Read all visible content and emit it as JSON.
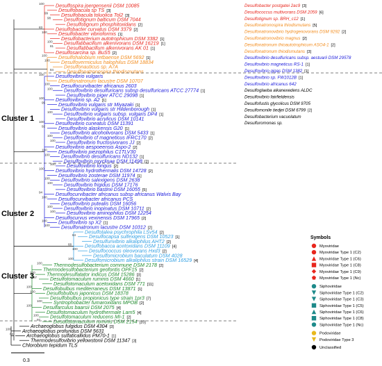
{
  "colors": {
    "red": "#e8261d",
    "orange": "#f28b1c",
    "blue": "#1a1adc",
    "lightblue": "#2e9ee3",
    "green": "#1d8a2c",
    "black": "#000000"
  },
  "clusters": [
    {
      "name": "Cluster 1"
    },
    {
      "name": "Cluster 2"
    },
    {
      "name": "Cluster 3"
    }
  ],
  "tree": {
    "taxa": [
      {
        "name": "Desulfospira joergensenii DSM 10085",
        "color": "red"
      },
      {
        "name": "Desulfobacula sp TS",
        "tag": "[3]",
        "color": "red"
      },
      {
        "name": "Desulfobacula toluolica Tol2",
        "tag": "[3]",
        "color": "red"
      },
      {
        "name": "Desulfotignum balticum DSM 7044",
        "color": "red"
      },
      {
        "name": "Desulfotignum phosphitoxidans",
        "tag": "[2]",
        "color": "red"
      },
      {
        "name": "Desulfobacter curvatus DSM 3379",
        "tag": "[2]",
        "color": "red"
      },
      {
        "name": "Desulfobacter vibrioformis",
        "tag": "[1]",
        "color": "red"
      },
      {
        "name": "Desulfobacterium autotrophicum DSM 3382",
        "tag": "[1]",
        "color": "red"
      },
      {
        "name": "Desulfatibacillum alkenivorans DSM 16219",
        "tag": "[1]",
        "color": "red"
      },
      {
        "name": "Desulfatibacillum alkenivorans AK 01",
        "tag": "[1]",
        "color": "red"
      },
      {
        "name": "Desulfosarcina sp. BuS5",
        "tag": "[2]",
        "color": "red"
      },
      {
        "name": "Desulfohalobium retbaense DSM 5692",
        "tag": "[1]",
        "color": "orange"
      },
      {
        "name": "Desulfovermiculus halophilus DSM 18834",
        "color": "orange"
      },
      {
        "name": "Desulfonauticus sp. A7A",
        "color": "orange"
      },
      {
        "name": "Desulfonatronospira thiodismutans",
        "color": "orange"
      },
      {
        "name": "Desulfovibrio vulgaris",
        "color": "blue"
      },
      {
        "name": "Desulfonatronum lacustre DSM 10707",
        "color": "orange"
      },
      {
        "name": "Desulfocurvibacter africanus 2603",
        "color": "blue"
      },
      {
        "name": "Desulfovibrio desulfuricans subsp desulfuricans ATCC 27774",
        "tag": "[1]",
        "color": "blue"
      },
      {
        "name": "Desulfovibrio piger ATCC 29098",
        "tag": "[1]",
        "color": "blue"
      },
      {
        "name": "Desulfovibrio sp. A2",
        "tag": "[1]",
        "color": "blue"
      },
      {
        "name": "Desulfovibrio vulgaris str Miyazaki",
        "tag": "[1]",
        "color": "blue"
      },
      {
        "name": "Desulfovibrio vulgaris str Hildenborough",
        "tag": "[1]",
        "color": "blue"
      },
      {
        "name": "Desulfovibrio vulgaris subsp. vulgaris DP4",
        "tag": "[1]",
        "color": "blue"
      },
      {
        "name": "Desulfovibrio acrylicus DSM 10141",
        "color": "blue"
      },
      {
        "name": "Desulfovibrio cuneatus DSM 11391",
        "color": "blue"
      },
      {
        "name": "Desulfovibrio alaskensis G20",
        "tag": "[1]",
        "color": "blue"
      },
      {
        "name": "Desulfovibrio alcoholivorans DSM 5433",
        "tag": "[1]",
        "color": "blue"
      },
      {
        "name": "Desulfovibrio cf magneticus IFRC170",
        "tag": "[2]",
        "color": "blue"
      },
      {
        "name": "Desulfovibrio fructosivorans JJ",
        "tag": "[2]",
        "color": "blue"
      },
      {
        "name": "Desulfovibrio aespoeensis Aspo-2",
        "tag": "[2]",
        "color": "blue"
      },
      {
        "name": "Desulfovibrio piezophilus C1TLV30",
        "color": "blue"
      },
      {
        "name": "Desulfovibrio desulfuricans ND132",
        "tag": "[1]",
        "color": "blue"
      },
      {
        "name": "Desulfovibrio oxyclinae DSM 11498",
        "tag": "[2]",
        "color": "blue"
      },
      {
        "name": "Desulfovibrio longus",
        "tag": "[2]",
        "color": "blue"
      },
      {
        "name": "Desulfovibrio hydrothermalis DSM 14728",
        "tag": "[2]",
        "color": "blue"
      },
      {
        "name": "Desulfovibrio zosterae DSM 11974",
        "tag": "[1]",
        "color": "blue"
      },
      {
        "name": "Desulfovibrio salexigens DSM 2638",
        "color": "blue"
      },
      {
        "name": "Desulfovibrio frigidus DSM 17176",
        "color": "blue"
      },
      {
        "name": "Desulfovibrio bastinii DSM 16055",
        "tag": "[5]",
        "color": "blue"
      },
      {
        "name": "Desulfocurvibacter africanus subsp africanus Walvis Bay",
        "color": "blue"
      },
      {
        "name": "Desulfocurvibacter africanus PCS",
        "color": "blue"
      },
      {
        "name": "Desulfovibrio putealis DSM 16056",
        "color": "blue"
      },
      {
        "name": "Desulfovibrio inopinatus DSM 10711",
        "tag": "[2]",
        "color": "blue"
      },
      {
        "name": "Desulfovibrio aminophilus DSM 12254",
        "color": "blue"
      },
      {
        "name": "Desulfocurvus vexinensis DSM 17965",
        "tag": "[2]",
        "color": "blue"
      },
      {
        "name": "Desulfovibrio sp X2",
        "tag": "[1]",
        "color": "blue"
      },
      {
        "name": "Desulfonatronum lacustre DSM 10312",
        "tag": "[2]",
        "color": "blue"
      },
      {
        "name": "Desulfotalea psychrophila LSv54",
        "tag": "[2]",
        "color": "lightblue"
      },
      {
        "name": "Desulfocapsa sulfexigens DSM 10523",
        "tag": "[1]",
        "color": "lightblue"
      },
      {
        "name": "Desulfurivibrio alkaliphilus AHT2",
        "tag": "[2]",
        "color": "lightblue"
      },
      {
        "name": "Desulfobacca acetoxidans DSM 11109",
        "tag": "[4]",
        "color": "lightblue"
      },
      {
        "name": "Desulfococcus oleovorans Hxd3",
        "tag": "[2]",
        "color": "lightblue"
      },
      {
        "name": "Desulfomicrobium baculatum DSM 4028",
        "color": "lightblue"
      },
      {
        "name": "Desulfomicrobium alkaliphilus strain DSM 16529",
        "tag": "[4]",
        "color": "lightblue"
      },
      {
        "name": "Thermodesulfobacterium commune DSM 2178",
        "tag": "[2]",
        "color": "green"
      },
      {
        "name": "Thermodesulfobacterium geofontis OPF15",
        "tag": "[2]",
        "color": "green"
      },
      {
        "name": "Thermodesulfatator indicus DSM 15286",
        "tag": "[3]",
        "color": "green"
      },
      {
        "name": "Desulfotomaculum ruminis DSM 4660",
        "tag": "[1]",
        "color": "green"
      },
      {
        "name": "Desulfotomaculum acetoxidans DSM 771",
        "tag": "[11]",
        "color": "green"
      },
      {
        "name": "Desulfobulbus mediterraneus DSM 13871",
        "tag": "[1]",
        "color": "green"
      },
      {
        "name": "Desulfobulbus japonicus DSM 18378",
        "color": "green"
      },
      {
        "name": "Desulfobulbus propionicus type strain 1pr3",
        "tag": "[7]",
        "color": "green"
      },
      {
        "name": "Syntrophobacter fumaroxidans MPOB",
        "tag": "[2]",
        "color": "green"
      },
      {
        "name": "Desulfarculus baarsii DSM 2075",
        "tag": "[4]",
        "color": "green"
      },
      {
        "name": "Desulfotomaculum hydrothermale Lam5",
        "tag": "[4]",
        "color": "green"
      },
      {
        "name": "Desulfotomaculum reducens MI-1",
        "tag": "[2]",
        "color": "green"
      },
      {
        "name": "Desulfotomaculum ruminis DSM 2154",
        "tag": "[10]",
        "color": "green"
      },
      {
        "name": "Archaeoglobus fulgidus DSM 4304",
        "tag": "[3]",
        "color": "black"
      },
      {
        "name": "Archaeoglobus profundus DSM 5631",
        "color": "black"
      },
      {
        "name": "Archaeoglobus sulfaticallidus PM70-1",
        "tag": "[1]",
        "color": "black"
      },
      {
        "name": "Thermodesulfovibrio yellowstonii DSM 11347",
        "tag": "[3]",
        "color": "black"
      },
      {
        "name": "Chlorobium tepidum TLS",
        "color": "black"
      }
    ],
    "bootstrap": [
      "100",
      "99",
      "98",
      "83",
      "100",
      "100",
      "81",
      "100",
      "100",
      "84",
      "100",
      "100",
      "100",
      "100",
      "95",
      "100",
      "100",
      "92",
      "100",
      "100",
      "100",
      "100",
      "100",
      "100",
      "100",
      "100",
      "94",
      "100",
      "100",
      "100",
      "100",
      "100",
      "64",
      "68",
      "100",
      "100",
      "100",
      "100",
      "97",
      "100",
      "100",
      "100",
      "100",
      "100",
      "97",
      "100",
      "64"
    ]
  },
  "right_list": [
    {
      "name": "Desulfobacter postgatei 2ac9",
      "tag": "[3]",
      "color": "red"
    },
    {
      "name": "Desulfococcus multivorans DSM 2059",
      "tag": "[6]",
      "color": "red"
    },
    {
      "name": "Desulfotignum sp. BRH_c12",
      "tag": "[1]",
      "color": "red"
    },
    {
      "name": "Desulfonatronospira thiodismutans",
      "tag": "[5]",
      "color": "orange"
    },
    {
      "name": "Desulfonatronovibrio hydrogenovorans DSM 9292",
      "tag": "[2]",
      "color": "orange"
    },
    {
      "name": "Desulfonatronovibrio magnus",
      "tag": "[2]",
      "color": "orange"
    },
    {
      "name": "Desulfonatronum thioautotrophicum ASO4-1",
      "tag": "[2]",
      "color": "orange"
    },
    {
      "name": "Desulfonatronum thiodismutans",
      "tag": "[3]",
      "color": "orange"
    },
    {
      "name": "Desulfovibrio desulfuricans subsp. aestuarii DSM 29578",
      "color": "blue"
    },
    {
      "name": "Desulfovibrio magneticus RS-1",
      "tag": "[1]",
      "color": "blue"
    },
    {
      "name": "Desulfovibrio gigas DSM 1382",
      "tag": "[1]",
      "color": "blue"
    },
    {
      "name": "Desulfovibrio sp. FW1012B",
      "tag": "[1]",
      "color": "blue"
    },
    {
      "name": "Desulfovibrio africanus 642",
      "color": "blue"
    },
    {
      "name": "Desulfoglaeba alkanexedens ALDC",
      "color": "black"
    },
    {
      "name": "Desulfovibrio fairfieldensis",
      "color": "black"
    },
    {
      "name": "Desulfofustis glycolicus DSM 9705",
      "color": "black"
    },
    {
      "name": "Desulfomonile tiedjei DSM 6799",
      "tag": "[2]",
      "color": "black"
    },
    {
      "name": "Desulfobacterium vacuolatum",
      "color": "black"
    },
    {
      "name": "Desulfuromonas sp.",
      "color": "black"
    }
  ],
  "legend": {
    "title": "Symbols",
    "items": [
      {
        "label": "Myoviridae",
        "shape": "circle",
        "color": "#e8261d"
      },
      {
        "label": "Myoviridae Type 1 (C2)",
        "shape": "circle",
        "color": "#e8261d"
      },
      {
        "label": "Myoviridae Type 1 (C6)",
        "shape": "triangle-up",
        "color": "#e8261d"
      },
      {
        "label": "Myoviridae Type 1 (C8)",
        "shape": "square",
        "color": "#e8261d"
      },
      {
        "label": "Myoviridae Type 1 (C9)",
        "shape": "diamond",
        "color": "#e8261d"
      },
      {
        "label": "Myoviridae Type 1 (Nc)",
        "shape": "pentagon",
        "color": "#e8261d"
      },
      {
        "label": "Siphoviridae",
        "shape": "circle",
        "color": "#1d8a8a"
      },
      {
        "label": "Siphoviridae Type 1 (C2)",
        "shape": "triangle-down",
        "color": "#1d8a8a"
      },
      {
        "label": "Siphoviridae Type 1 (C3)",
        "shape": "triangle-down",
        "color": "#1d8a8a"
      },
      {
        "label": "Siphoviridae Type 1 (C5)",
        "shape": "square",
        "color": "#1d8a8a"
      },
      {
        "label": "Siphoviridae Type 1 (C6)",
        "shape": "triangle-up",
        "color": "#1d8a8a"
      },
      {
        "label": "Siphoviridae Type 1 (C8)",
        "shape": "square",
        "color": "#1d8a8a"
      },
      {
        "label": "Siphoviridae Type 1 (Nc)",
        "shape": "circle",
        "color": "#1d8a8a"
      },
      {
        "label": "Podoviridae",
        "shape": "circle",
        "color": "#e8b81d"
      },
      {
        "label": "Podoviridae Type 3",
        "shape": "triangle-down",
        "color": "#e8b81d"
      },
      {
        "label": "Unclassified",
        "shape": "circle",
        "color": "#000000"
      }
    ]
  },
  "scale_bar": {
    "label": "0.3"
  }
}
